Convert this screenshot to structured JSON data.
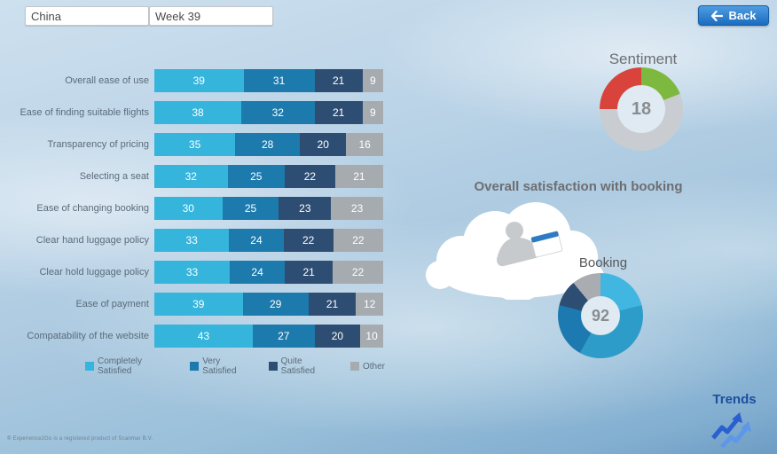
{
  "filters": {
    "country": "China",
    "week": "Week 39"
  },
  "back_button": {
    "label": "Back"
  },
  "headings": {
    "satisfaction": "Overall satisfaction with booking",
    "trends": "Trends"
  },
  "footer": {
    "note": "® Experience2Go is a registered product of Scanmar B.V."
  },
  "chart_data": [
    {
      "type": "bar",
      "variant": "horizontal-stacked",
      "categories": [
        "Overall ease of use",
        "Ease of finding suitable flights",
        "Transparency of pricing",
        "Selecting a seat",
        "Ease of changing booking",
        "Clear hand luggage policy",
        "Clear hold luggage policy",
        "Ease of payment",
        "Compatability of the website"
      ],
      "series": [
        {
          "name": "Completely Satisfied",
          "color": "#35b4dc",
          "values": [
            39,
            38,
            35,
            32,
            30,
            33,
            33,
            39,
            43
          ]
        },
        {
          "name": "Very Satisfied",
          "color": "#1d7aad",
          "values": [
            31,
            32,
            28,
            25,
            25,
            24,
            24,
            29,
            27
          ]
        },
        {
          "name": "Quite Satisfied",
          "color": "#2e4d72",
          "values": [
            21,
            21,
            20,
            22,
            23,
            22,
            21,
            21,
            20
          ]
        },
        {
          "name": "Other",
          "color": "#a6abb0",
          "values": [
            9,
            9,
            16,
            21,
            23,
            22,
            22,
            12,
            10
          ]
        }
      ],
      "legend_position": "bottom",
      "xlim": [
        0,
        100
      ]
    },
    {
      "type": "pie",
      "variant": "donut",
      "title": "Sentiment",
      "value": 18,
      "segments": [
        {
          "value": 19,
          "color": "#7cb93e"
        },
        {
          "value": 56,
          "color": "#c9cdd1"
        },
        {
          "value": 25,
          "color": "#d8433c"
        }
      ]
    },
    {
      "type": "pie",
      "variant": "donut",
      "title": "Booking",
      "value": 92,
      "segments": [
        {
          "value": 21,
          "color": "#41b6e0"
        },
        {
          "value": 37,
          "color": "#2e9cc9"
        },
        {
          "value": 21,
          "color": "#1d7ab0"
        },
        {
          "value": 10,
          "color": "#2e4d72"
        },
        {
          "value": 11,
          "color": "#a9adb1"
        }
      ]
    }
  ]
}
